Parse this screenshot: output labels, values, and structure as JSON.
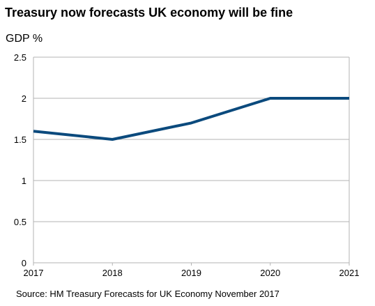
{
  "chart_data": {
    "type": "line",
    "title": "Treasury now forecasts UK economy will be fine",
    "ylabel": "GDP %",
    "xlabel": "",
    "source": "Source: HM Treasury Forecasts for UK Economy November 2017",
    "x": [
      2017,
      2018,
      2019,
      2020,
      2021
    ],
    "xticks": [
      "2017",
      "2018",
      "2019",
      "2020",
      "2021"
    ],
    "yticks": [
      "0",
      "0.5",
      "1",
      "1.5",
      "2",
      "2.5"
    ],
    "ylim": [
      0,
      2.5
    ],
    "grid": "horizontal",
    "legend": "none",
    "series": [
      {
        "values": [
          1.6,
          1.5,
          1.7,
          2.0,
          2.0
        ],
        "color": "#0b4a7d"
      }
    ]
  }
}
